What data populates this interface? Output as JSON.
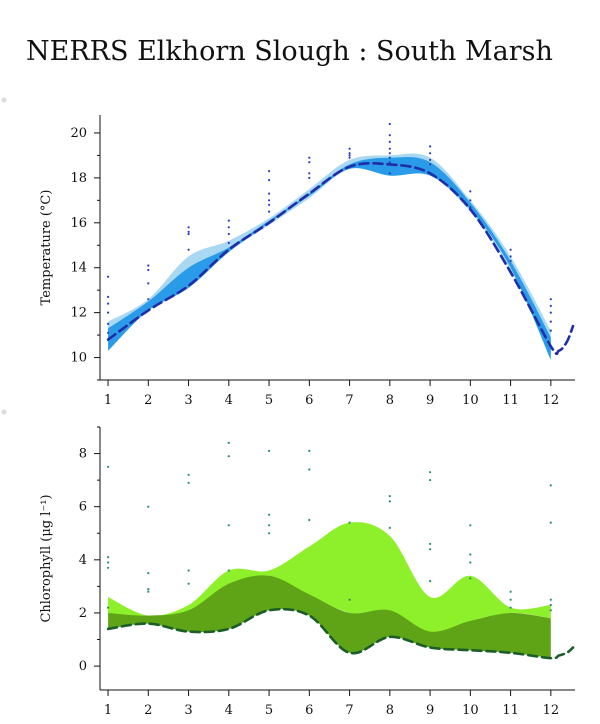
{
  "title": "NERRS Elkhorn Slough : South Marsh",
  "chart_data": [
    {
      "type": "area",
      "ylabel": "Temperature (°C)",
      "xlim": [
        0.8,
        12.6
      ],
      "ylim": [
        9.0,
        20.8
      ],
      "xticks": [
        1,
        2,
        3,
        4,
        5,
        6,
        7,
        8,
        9,
        10,
        11,
        12
      ],
      "yticks": [
        10,
        12,
        14,
        16,
        18,
        20
      ],
      "x": [
        1,
        2,
        3,
        4,
        5,
        6,
        7,
        8,
        9,
        10,
        11,
        12
      ],
      "colors": {
        "outer_band": "#a8d8f2",
        "inner_band": "#2a9be8",
        "trend": "#1f2ea8",
        "points": "#2a3fc0"
      },
      "series": [
        {
          "role": "outer_upper",
          "values": [
            11.6,
            12.6,
            14.5,
            15.2,
            16.2,
            17.5,
            18.8,
            19.0,
            18.9,
            17.0,
            14.5,
            11.2
          ]
        },
        {
          "role": "outer_lower",
          "values": [
            10.7,
            12.1,
            13.1,
            14.7,
            15.9,
            17.1,
            18.4,
            18.1,
            18.1,
            16.5,
            13.9,
            10.2
          ]
        },
        {
          "role": "inner_upper",
          "values": [
            11.3,
            12.5,
            14.0,
            14.9,
            16.1,
            17.3,
            18.6,
            18.9,
            18.7,
            16.9,
            14.3,
            10.9
          ]
        },
        {
          "role": "inner_lower",
          "values": [
            10.3,
            12.1,
            13.1,
            14.7,
            16.0,
            17.2,
            18.4,
            18.1,
            18.1,
            16.6,
            14.0,
            9.9
          ]
        },
        {
          "role": "trend",
          "values": [
            10.8,
            12.1,
            13.2,
            14.8,
            16.0,
            17.3,
            18.5,
            18.6,
            18.2,
            16.6,
            13.8,
            10.5
          ],
          "tail": [
            [
              12.2,
              10.3
            ],
            [
              12.4,
              10.7
            ],
            [
              12.55,
              11.4
            ]
          ]
        }
      ],
      "scatter": [
        [
          1,
          13.6
        ],
        [
          1,
          12.7
        ],
        [
          1,
          12.4
        ],
        [
          1,
          12.0
        ],
        [
          1,
          11.5
        ],
        [
          1,
          11.1
        ],
        [
          2,
          14.1
        ],
        [
          2,
          13.9
        ],
        [
          2,
          13.3
        ],
        [
          2,
          12.6
        ],
        [
          3,
          15.8
        ],
        [
          3,
          15.6
        ],
        [
          3,
          15.5
        ],
        [
          3,
          14.8
        ],
        [
          4,
          16.1
        ],
        [
          4,
          15.8
        ],
        [
          4,
          15.5
        ],
        [
          4,
          15.1
        ],
        [
          5,
          18.3
        ],
        [
          5,
          17.9
        ],
        [
          5,
          17.3
        ],
        [
          5,
          17.0
        ],
        [
          5,
          16.8
        ],
        [
          5,
          16.5
        ],
        [
          6,
          18.9
        ],
        [
          6,
          18.7
        ],
        [
          6,
          18.2
        ],
        [
          6,
          18.0
        ],
        [
          7,
          19.3
        ],
        [
          7,
          19.1
        ],
        [
          7,
          19.0
        ],
        [
          7,
          18.9
        ],
        [
          8,
          20.4
        ],
        [
          8,
          19.9
        ],
        [
          8,
          19.6
        ],
        [
          8,
          19.3
        ],
        [
          8,
          19.1
        ],
        [
          8,
          18.9
        ],
        [
          8,
          18.7
        ],
        [
          8,
          18.2
        ],
        [
          9,
          19.4
        ],
        [
          9,
          19.1
        ],
        [
          9,
          18.8
        ],
        [
          9,
          18.6
        ],
        [
          10,
          17.4
        ],
        [
          10,
          17.0
        ],
        [
          10,
          16.7
        ],
        [
          11,
          14.8
        ],
        [
          11,
          14.5
        ],
        [
          11,
          14.3
        ],
        [
          12,
          12.6
        ],
        [
          12,
          12.3
        ],
        [
          12,
          12.0
        ],
        [
          12,
          11.6
        ],
        [
          12,
          11.2
        ]
      ]
    },
    {
      "type": "area",
      "ylabel": "Chlorophyll (μg l⁻¹)",
      "xlim": [
        0.8,
        12.6
      ],
      "ylim": [
        -0.9,
        9.0
      ],
      "xticks": [
        1,
        2,
        3,
        4,
        5,
        6,
        7,
        8,
        9,
        10,
        11,
        12
      ],
      "yticks": [
        0,
        2,
        4,
        6,
        8
      ],
      "x": [
        1,
        2,
        3,
        4,
        5,
        6,
        7,
        8,
        9,
        10,
        11,
        12
      ],
      "colors": {
        "outer_band": "#8ef02a",
        "inner_band": "#5fa416",
        "trend": "#1b5e2a",
        "points": "#2a8a7a"
      },
      "series": [
        {
          "role": "outer_upper",
          "values": [
            2.6,
            1.9,
            2.3,
            3.6,
            3.6,
            4.5,
            5.4,
            4.9,
            2.6,
            3.4,
            2.2,
            2.3
          ]
        },
        {
          "role": "outer_lower",
          "values": [
            1.9,
            1.9,
            2.0,
            3.0,
            3.4,
            2.6,
            2.0,
            1.6,
            1.1,
            1.6,
            2.0,
            1.8
          ]
        },
        {
          "role": "inner_upper",
          "values": [
            2.0,
            1.9,
            2.1,
            3.1,
            3.4,
            2.7,
            2.0,
            2.1,
            1.3,
            1.7,
            2.0,
            1.8
          ]
        },
        {
          "role": "inner_lower",
          "values": [
            1.4,
            1.6,
            1.3,
            1.4,
            2.1,
            1.9,
            0.5,
            1.1,
            0.7,
            0.6,
            0.5,
            0.3
          ]
        },
        {
          "role": "trend",
          "values": [
            1.4,
            1.6,
            1.3,
            1.4,
            2.1,
            1.9,
            0.5,
            1.1,
            0.7,
            0.6,
            0.5,
            0.3
          ],
          "tail": [
            [
              12.2,
              0.4
            ],
            [
              12.4,
              0.5
            ],
            [
              12.55,
              0.7
            ]
          ]
        }
      ],
      "scatter": [
        [
          1,
          7.5
        ],
        [
          1,
          4.1
        ],
        [
          1,
          3.9
        ],
        [
          1,
          3.7
        ],
        [
          1,
          2.2
        ],
        [
          2,
          6.0
        ],
        [
          2,
          3.5
        ],
        [
          2,
          2.9
        ],
        [
          2,
          2.8
        ],
        [
          3,
          7.2
        ],
        [
          3,
          6.9
        ],
        [
          3,
          3.6
        ],
        [
          3,
          3.1
        ],
        [
          4,
          8.4
        ],
        [
          4,
          7.9
        ],
        [
          4,
          5.3
        ],
        [
          4,
          3.6
        ],
        [
          5,
          8.1
        ],
        [
          5,
          5.7
        ],
        [
          5,
          5.3
        ],
        [
          5,
          5.0
        ],
        [
          6,
          8.1
        ],
        [
          6,
          7.4
        ],
        [
          6,
          5.5
        ],
        [
          7,
          5.4
        ],
        [
          7,
          2.5
        ],
        [
          8,
          6.4
        ],
        [
          8,
          6.2
        ],
        [
          8,
          5.2
        ],
        [
          9,
          7.3
        ],
        [
          9,
          7.0
        ],
        [
          9,
          4.6
        ],
        [
          9,
          4.4
        ],
        [
          9,
          3.2
        ],
        [
          10,
          5.3
        ],
        [
          10,
          4.2
        ],
        [
          10,
          3.9
        ],
        [
          10,
          3.3
        ],
        [
          11,
          2.8
        ],
        [
          11,
          2.5
        ],
        [
          11,
          2.2
        ],
        [
          12,
          6.8
        ],
        [
          12,
          5.4
        ],
        [
          12,
          2.5
        ],
        [
          12,
          2.3
        ],
        [
          12,
          2.1
        ]
      ]
    }
  ]
}
